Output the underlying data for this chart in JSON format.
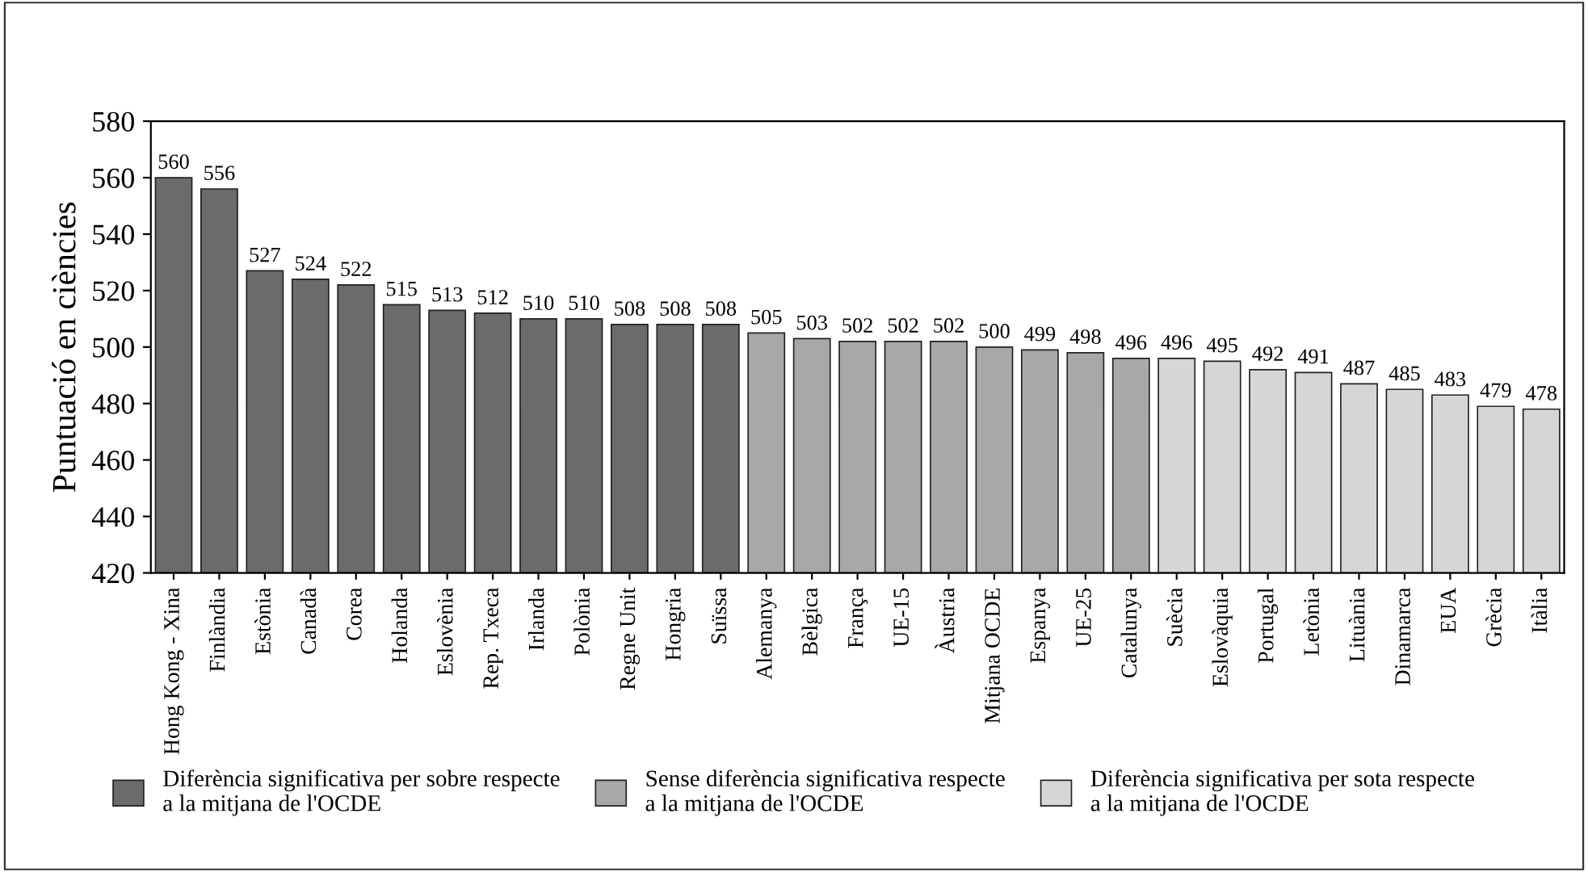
{
  "chart_data": {
    "type": "bar",
    "ylabel": "Puntuació en ciències",
    "categories": [
      "Hong Kong - Xina",
      "Finlàndia",
      "Estònia",
      "Canadà",
      "Corea",
      "Holanda",
      "Eslovènia",
      "Rep. Txeca",
      "Irlanda",
      "Polònia",
      "Regne Unit",
      "Hongria",
      "Suïssa",
      "Alemanya",
      "Bèlgica",
      "França",
      "UE-15",
      "Àustria",
      "Mitjana OCDE",
      "Espanya",
      "UE-25",
      "Catalunya",
      "Suècia",
      "Eslovàquia",
      "Portugal",
      "Letònia",
      "Lituània",
      "Dinamarca",
      "EUA",
      "Grècia",
      "Itàlia"
    ],
    "series": [
      {
        "name": "Diferència significativa per sobre respecte\na la mitjana de l'OCDE",
        "color": "#6b6b6b",
        "values": [
          560,
          556,
          527,
          524,
          522,
          515,
          513,
          512,
          510,
          510,
          508,
          508,
          508,
          null,
          null,
          null,
          null,
          null,
          null,
          null,
          null,
          null,
          null,
          null,
          null,
          null,
          null,
          null,
          null,
          null,
          null
        ]
      },
      {
        "name": "Sense diferència significativa respecte\na la mitjana de l'OCDE",
        "color": "#a8a8a8",
        "values": [
          null,
          null,
          null,
          null,
          null,
          null,
          null,
          null,
          null,
          null,
          null,
          null,
          null,
          505,
          503,
          502,
          502,
          502,
          500,
          499,
          498,
          496,
          null,
          null,
          null,
          null,
          null,
          null,
          null,
          null,
          null
        ]
      },
      {
        "name": "Diferència significativa per sota respecte\na la mitjana de l'OCDE",
        "color": "#d6d6d6",
        "values": [
          null,
          null,
          null,
          null,
          null,
          null,
          null,
          null,
          null,
          null,
          null,
          null,
          null,
          null,
          null,
          null,
          null,
          null,
          null,
          null,
          null,
          null,
          496,
          495,
          492,
          491,
          487,
          485,
          483,
          479,
          478
        ]
      }
    ],
    "ylim": [
      420,
      580
    ],
    "yticks": [
      420,
      440,
      460,
      480,
      500,
      520,
      540,
      560,
      580
    ],
    "data_labels": true,
    "legend": "bottom"
  }
}
